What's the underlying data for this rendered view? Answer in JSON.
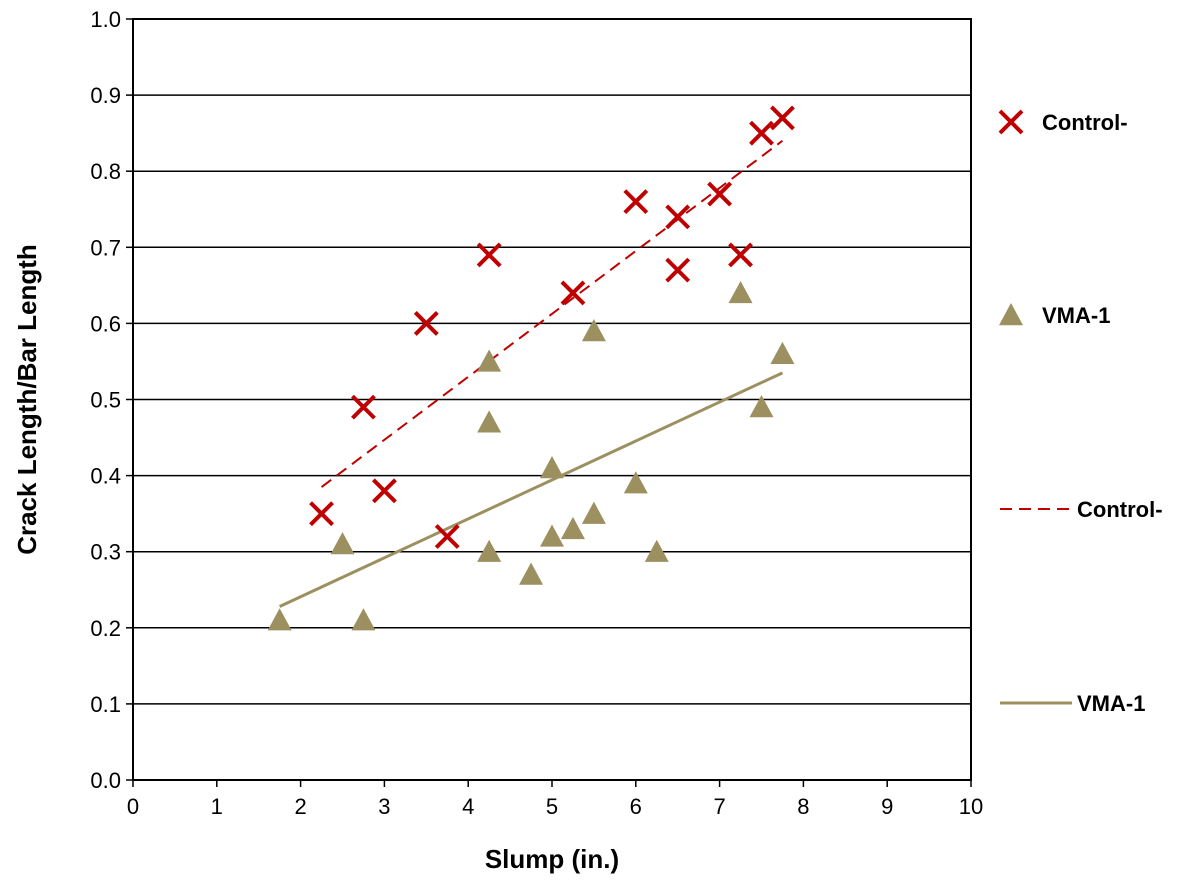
{
  "chart_data": {
    "type": "scatter",
    "title": "",
    "xlabel": "Slump (in.)",
    "ylabel": "Crack Length/Bar Length",
    "xlim": [
      0,
      10
    ],
    "ylim": [
      0,
      1.0
    ],
    "x_ticks": [
      "0",
      "1",
      "2",
      "3",
      "4",
      "5",
      "6",
      "7",
      "8",
      "9",
      "10"
    ],
    "y_ticks": [
      "0.0",
      "0.1",
      "0.2",
      "0.3",
      "0.4",
      "0.5",
      "0.6",
      "0.7",
      "0.8",
      "0.9",
      "1.0"
    ],
    "grid": "horizontal",
    "legend_position": "right",
    "series": [
      {
        "name": "Control-",
        "marker": "x",
        "color": "#c00000",
        "points": [
          [
            2.25,
            0.35
          ],
          [
            2.75,
            0.49
          ],
          [
            3.0,
            0.38
          ],
          [
            3.5,
            0.6
          ],
          [
            3.75,
            0.32
          ],
          [
            4.25,
            0.69
          ],
          [
            5.25,
            0.64
          ],
          [
            6.0,
            0.76
          ],
          [
            6.5,
            0.74
          ],
          [
            6.5,
            0.67
          ],
          [
            7.0,
            0.77
          ],
          [
            7.25,
            0.69
          ],
          [
            7.5,
            0.85
          ],
          [
            7.75,
            0.87
          ]
        ]
      },
      {
        "name": "VMA-1",
        "marker": "triangle",
        "color": "#9c9060",
        "points": [
          [
            1.75,
            0.21
          ],
          [
            2.5,
            0.31
          ],
          [
            2.75,
            0.21
          ],
          [
            4.25,
            0.55
          ],
          [
            4.25,
            0.47
          ],
          [
            4.25,
            0.3
          ],
          [
            4.75,
            0.27
          ],
          [
            5.0,
            0.41
          ],
          [
            5.0,
            0.32
          ],
          [
            5.25,
            0.33
          ],
          [
            5.5,
            0.59
          ],
          [
            5.5,
            0.35
          ],
          [
            6.0,
            0.39
          ],
          [
            6.25,
            0.3
          ],
          [
            7.25,
            0.64
          ],
          [
            7.5,
            0.49
          ],
          [
            7.75,
            0.56
          ]
        ]
      }
    ],
    "trendlines": [
      {
        "name": "Control-",
        "style": "dashed",
        "color": "#c00000",
        "from": [
          2.25,
          0.385
        ],
        "to": [
          7.75,
          0.84
        ]
      },
      {
        "name": "VMA-1",
        "style": "solid",
        "color": "#9c9060",
        "from": [
          1.75,
          0.228
        ],
        "to": [
          7.75,
          0.535
        ]
      }
    ]
  }
}
